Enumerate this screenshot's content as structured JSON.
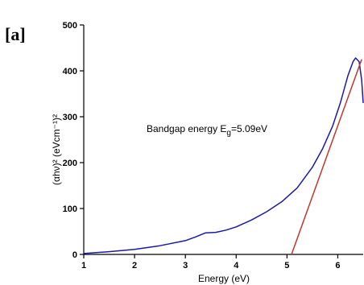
{
  "panel_label": "[a]",
  "chart_data": {
    "type": "line",
    "xlabel": "Energy (eV)",
    "ylabel": "(αhν)² (eVcm⁻¹)²",
    "xlim": [
      1,
      6.5
    ],
    "ylim": [
      0,
      500
    ],
    "xticks": [
      1,
      2,
      3,
      4,
      5,
      6
    ],
    "yticks": [
      0,
      100,
      200,
      300,
      400,
      500
    ],
    "grid": false,
    "annotation": {
      "text_prefix": "Bandgap energy E",
      "text_sub": "g",
      "text_suffix": "=5.09eV"
    },
    "series": [
      {
        "color": "#1a1aa8",
        "x": [
          1.0,
          1.5,
          2.0,
          2.5,
          3.0,
          3.2,
          3.4,
          3.6,
          3.8,
          4.0,
          4.3,
          4.6,
          4.9,
          5.2,
          5.5,
          5.7,
          5.9,
          6.05,
          6.2,
          6.3,
          6.35,
          6.42,
          6.47,
          6.5
        ],
        "y": [
          2,
          6,
          11,
          19,
          30,
          38,
          47,
          48,
          53,
          60,
          75,
          93,
          115,
          145,
          190,
          230,
          280,
          330,
          390,
          420,
          428,
          420,
          380,
          330
        ]
      },
      {
        "color": "#c0392b",
        "x": [
          5.09,
          6.47
        ],
        "y": [
          0,
          425
        ]
      }
    ]
  }
}
